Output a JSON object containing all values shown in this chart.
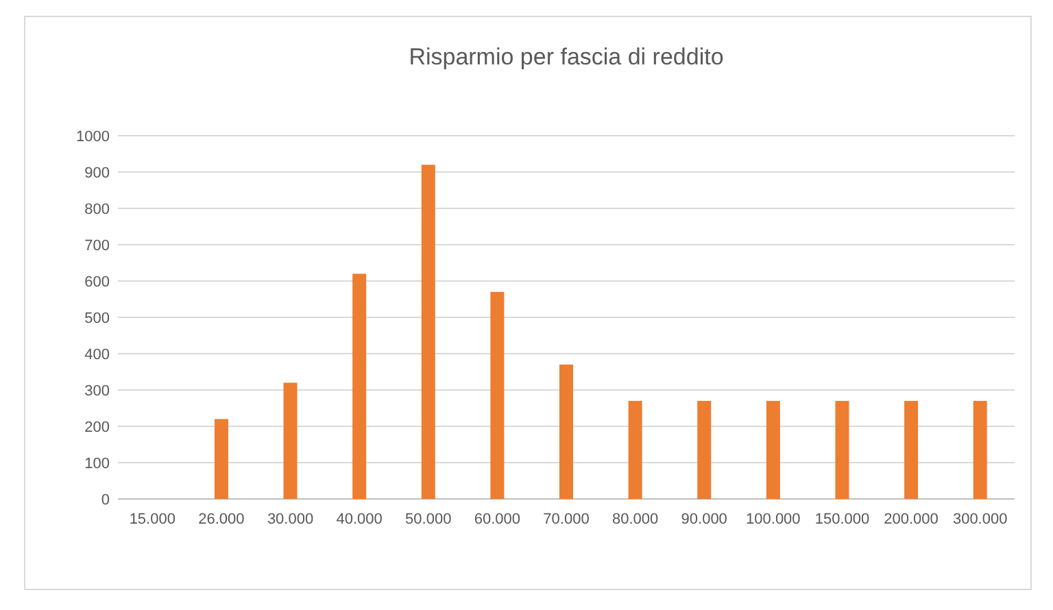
{
  "chart_data": {
    "type": "bar",
    "title": "Risparmio per fascia di reddito",
    "categories": [
      "15.000",
      "26.000",
      "30.000",
      "40.000",
      "50.000",
      "60.000",
      "70.000",
      "80.000",
      "90.000",
      "100.000",
      "150.000",
      "200.000",
      "300.000"
    ],
    "values": [
      0,
      220,
      320,
      620,
      920,
      570,
      370,
      270,
      270,
      270,
      270,
      270,
      270
    ],
    "color": "#ed7d31",
    "ylim": [
      0,
      1000
    ],
    "yticks": [
      0,
      100,
      200,
      300,
      400,
      500,
      600,
      700,
      800,
      900,
      1000
    ],
    "grid": "y"
  }
}
